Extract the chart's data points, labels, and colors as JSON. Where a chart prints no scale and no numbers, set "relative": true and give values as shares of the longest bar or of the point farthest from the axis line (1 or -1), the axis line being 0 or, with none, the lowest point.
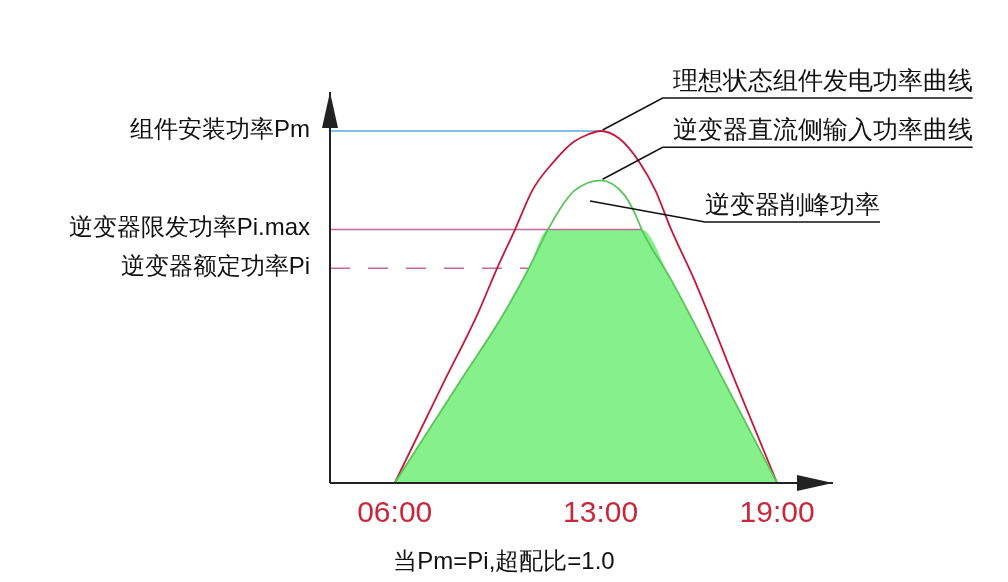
{
  "chart_data": {
    "type": "line",
    "relative": true,
    "xlim": [
      3.8,
      20.9
    ],
    "xticks": [
      {
        "value": 6,
        "label": "06:00"
      },
      {
        "value": 13,
        "label": "13:00"
      },
      {
        "value": 19,
        "label": "19:00"
      }
    ],
    "series": [
      {
        "type": "area",
        "color": "#86f08a",
        "x": [
          6,
          8.23,
          9.77,
          10.56,
          11.21,
          14.4,
          15.38,
          17.19,
          19
        ],
        "values": [
          0,
          0.29,
          0.49,
          0.61,
          0.72,
          0.72,
          0.58,
          0.29,
          0
        ]
      },
      {
        "name": "理想状态组件发电功率曲线",
        "color": "#c4183c",
        "x": [
          6,
          7.69,
          8.87,
          9.48,
          10.09,
          10.67,
          11.38,
          12.1,
          12.57,
          13,
          13.61,
          14.33,
          14.87,
          15.35,
          16.17,
          17.57,
          19
        ],
        "values": [
          0,
          0.29,
          0.49,
          0.61,
          0.72,
          0.83,
          0.91,
          0.97,
          0.99,
          1,
          0.98,
          0.91,
          0.83,
          0.73,
          0.58,
          0.29,
          0
        ]
      },
      {
        "name": "逆变器直流侧输入功率曲线",
        "color": "#5cc45c",
        "x": [
          6,
          8.23,
          9.77,
          10.56,
          11.21,
          11.71,
          12.1,
          13,
          13.79,
          14.14,
          14.4,
          15.38,
          17.19,
          19
        ],
        "values": [
          0,
          0.29,
          0.49,
          0.61,
          0.72,
          0.79,
          0.83,
          0.86,
          0.82,
          0.77,
          0.72,
          0.58,
          0.29,
          0
        ]
      }
    ],
    "ref_lines": [
      {
        "axis": "y",
        "value": 1,
        "label": "组件安装功率Pm",
        "color": "#5ea6d6"
      },
      {
        "axis": "y",
        "value": 0.72,
        "label": "逆变器限发功率Pi.max",
        "color": "#c2689a"
      },
      {
        "axis": "y",
        "value": 0.61,
        "label": "逆变器额定功率Pi",
        "color": "#c2689a",
        "line_style": "dashed"
      }
    ],
    "annotations": [
      "逆变器削峰功率",
      "当Pm=Pi,超配比=1.0"
    ]
  }
}
